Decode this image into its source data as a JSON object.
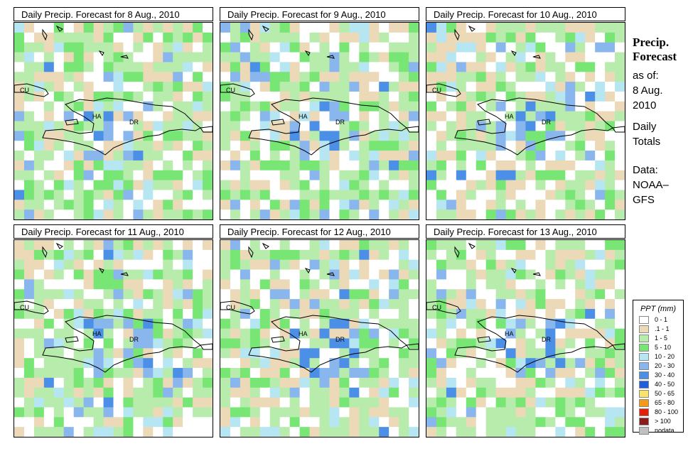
{
  "panels": [
    {
      "title": "Daily Precip. Forecast for  8 Aug., 2010",
      "seed": 11
    },
    {
      "title": "Daily Precip. Forecast for  9 Aug., 2010",
      "seed": 29
    },
    {
      "title": "Daily Precip. Forecast for  10 Aug., 2010",
      "seed": 47
    },
    {
      "title": "Daily Precip. Forecast for  11 Aug., 2010",
      "seed": 63
    },
    {
      "title": "Daily Precip. Forecast for  12 Aug., 2010",
      "seed": 81
    },
    {
      "title": "Daily Precip. Forecast for  13 Aug., 2010",
      "seed": 97
    }
  ],
  "map_labels": {
    "cuba": "CU",
    "haiti": "HA",
    "dominican_republic": "DR"
  },
  "side": {
    "title_line1": "Precip.",
    "title_line2": "Forecast",
    "asof": "as of:",
    "date_line1": "8 Aug.",
    "date_line2": "2010",
    "daily_line1": "Daily",
    "daily_line2": "Totals",
    "data_line1": "Data:",
    "data_line2": "NOAA–",
    "data_line3": "GFS"
  },
  "legend": {
    "title": "PPT (mm)",
    "classes": [
      {
        "label": "0 - 1",
        "color": "#ffffff"
      },
      {
        "label": ".1 - 1",
        "color": "#ecd9b8"
      },
      {
        "label": "1 - 5",
        "color": "#b8ecad"
      },
      {
        "label": "5 - 10",
        "color": "#78e674"
      },
      {
        "label": "10 - 20",
        "color": "#b6e6f2"
      },
      {
        "label": "20 - 30",
        "color": "#8ab6ee"
      },
      {
        "label": "30 - 40",
        "color": "#4b8fe6"
      },
      {
        "label": "40 - 50",
        "color": "#1f5fdb"
      },
      {
        "label": "50 - 65",
        "color": "#f8e46a"
      },
      {
        "label": "65 - 80",
        "color": "#f59a16"
      },
      {
        "label": "80 - 100",
        "color": "#e0210c"
      },
      {
        "label": "> 100",
        "color": "#8a1c1c"
      },
      {
        "label": "nodata",
        "color": "#c0c0c0"
      }
    ]
  }
}
